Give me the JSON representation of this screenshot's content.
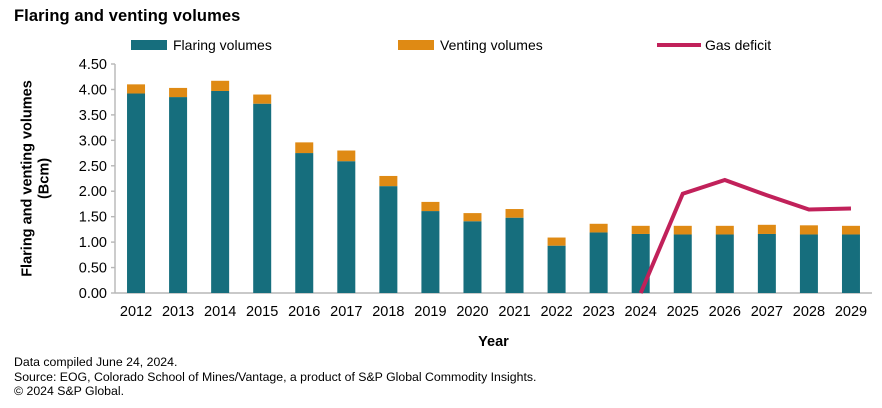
{
  "title": "Flaring and venting volumes",
  "legend": {
    "flaring": "Flaring volumes",
    "venting": "Venting volumes",
    "gas_deficit": "Gas deficit"
  },
  "colors": {
    "flaring": "#166E7D",
    "venting": "#DF8A14",
    "gas_deficit": "#C1215A",
    "axis": "#B7B7B7",
    "text": "#000000"
  },
  "chart_data": {
    "type": "bar",
    "subtype": "stacked-bars-with-line",
    "categories": [
      "2012",
      "2013",
      "2014",
      "2015",
      "2016",
      "2017",
      "2018",
      "2019",
      "2020",
      "2021",
      "2022",
      "2023",
      "2024",
      "2025",
      "2026",
      "2027",
      "2028",
      "2029"
    ],
    "series": [
      {
        "name": "Flaring volumes",
        "type": "bar",
        "stack": "volumes",
        "values": [
          3.92,
          3.85,
          3.97,
          3.72,
          2.75,
          2.59,
          2.1,
          1.61,
          1.41,
          1.48,
          0.93,
          1.19,
          1.16,
          1.15,
          1.15,
          1.16,
          1.15,
          1.15
        ]
      },
      {
        "name": "Venting volumes",
        "type": "bar",
        "stack": "volumes",
        "values": [
          0.18,
          0.18,
          0.2,
          0.18,
          0.21,
          0.21,
          0.2,
          0.18,
          0.16,
          0.17,
          0.16,
          0.17,
          0.16,
          0.17,
          0.17,
          0.18,
          0.18,
          0.17
        ]
      },
      {
        "name": "Gas deficit",
        "type": "line",
        "values": [
          null,
          null,
          null,
          null,
          null,
          null,
          null,
          null,
          null,
          null,
          null,
          null,
          0.0,
          1.95,
          2.22,
          1.92,
          1.64,
          1.66
        ]
      }
    ],
    "xlabel": "Year",
    "ylabel": "Flaring and venting volumes (Bcm)",
    "ylabel_lines": [
      "Flaring and venting volumes",
      "(Bcm)"
    ],
    "ylim": [
      0,
      4.5
    ],
    "ytick_step": 0.5,
    "ytick_decimals": 2,
    "grid": false,
    "legend_position": "top"
  },
  "footer": {
    "compiled": "Data compiled June 24, 2024.",
    "source": "Source: EOG, Colorado School of Mines/Vantage, a product of S&P Global Commodity Insights.",
    "copyright": "© 2024 S&P Global."
  }
}
